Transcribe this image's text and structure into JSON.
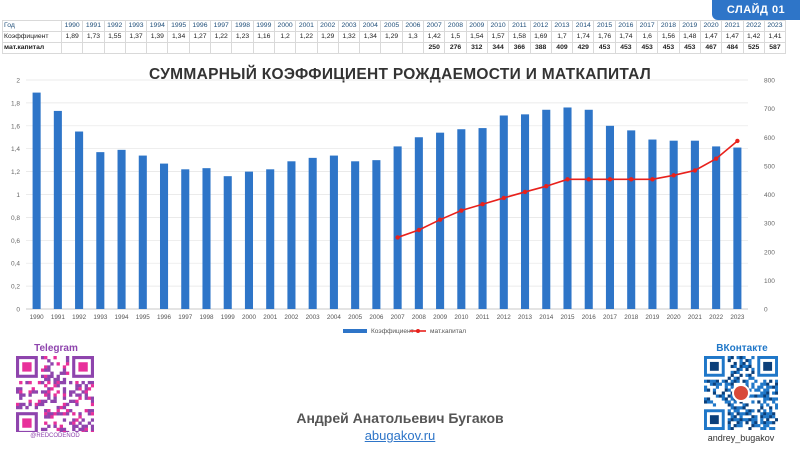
{
  "header": {
    "slide_label": "СЛАЙД 01"
  },
  "table": {
    "row_labels": {
      "year": "Год",
      "coefficient": "Коэффициент",
      "capital": "мат.капитал"
    },
    "years": [
      "1990",
      "1991",
      "1992",
      "1993",
      "1994",
      "1995",
      "1996",
      "1997",
      "1998",
      "1999",
      "2000",
      "2001",
      "2002",
      "2003",
      "2004",
      "2005",
      "2006",
      "2007",
      "2008",
      "2009",
      "2010",
      "2011",
      "2012",
      "2013",
      "2014",
      "2015",
      "2016",
      "2017",
      "2018",
      "2019",
      "2020",
      "2021",
      "2022",
      "2023"
    ],
    "coefficient": [
      "1,89",
      "1,73",
      "1,55",
      "1,37",
      "1,39",
      "1,34",
      "1,27",
      "1,22",
      "1,23",
      "1,16",
      "1,2",
      "1,22",
      "1,29",
      "1,32",
      "1,34",
      "1,29",
      "1,3",
      "1,42",
      "1,5",
      "1,54",
      "1,57",
      "1,58",
      "1,69",
      "1,7",
      "1,74",
      "1,76",
      "1,74",
      "1,6",
      "1,56",
      "1,48",
      "1,47",
      "1,47",
      "1,42",
      "1,41"
    ],
    "capital": [
      "",
      "",
      "",
      "",
      "",
      "",
      "",
      "",
      "",
      "",
      "",
      "",
      "",
      "",
      "",
      "",
      "",
      "250",
      "276",
      "312",
      "344",
      "366",
      "388",
      "409",
      "429",
      "453",
      "453",
      "453",
      "453",
      "453",
      "467",
      "484",
      "525",
      "587"
    ]
  },
  "chart_data": {
    "type": "bar+line",
    "title": "СУММАРНЫЙ КОЭФФИЦИЕНТ РОЖДАЕМОСТИ И МАТКАПИТАЛ",
    "categories": [
      "1990",
      "1991",
      "1992",
      "1993",
      "1994",
      "1995",
      "1996",
      "1997",
      "1998",
      "1999",
      "2000",
      "2001",
      "2002",
      "2003",
      "2004",
      "2005",
      "2006",
      "2007",
      "2008",
      "2009",
      "2010",
      "2011",
      "2012",
      "2013",
      "2014",
      "2015",
      "2016",
      "2017",
      "2018",
      "2019",
      "2020",
      "2021",
      "2022",
      "2023"
    ],
    "series": [
      {
        "name": "Коэффициент",
        "type": "bar",
        "axis": "left",
        "color": "#2e75c8",
        "values": [
          1.89,
          1.73,
          1.55,
          1.37,
          1.39,
          1.34,
          1.27,
          1.22,
          1.23,
          1.16,
          1.2,
          1.22,
          1.29,
          1.32,
          1.34,
          1.29,
          1.3,
          1.42,
          1.5,
          1.54,
          1.57,
          1.58,
          1.69,
          1.7,
          1.74,
          1.76,
          1.74,
          1.6,
          1.56,
          1.48,
          1.47,
          1.47,
          1.42,
          1.41
        ]
      },
      {
        "name": "мат.капитал",
        "type": "line",
        "axis": "right",
        "color": "#e8211c",
        "values": [
          null,
          null,
          null,
          null,
          null,
          null,
          null,
          null,
          null,
          null,
          null,
          null,
          null,
          null,
          null,
          null,
          null,
          250,
          276,
          312,
          344,
          366,
          388,
          409,
          429,
          453,
          453,
          453,
          453,
          453,
          467,
          484,
          525,
          587
        ]
      }
    ],
    "left_axis": {
      "ylim": [
        0,
        2
      ],
      "ticks": [
        "0",
        "0,2",
        "0,4",
        "0,6",
        "0,8",
        "1",
        "1,2",
        "1,4",
        "1,6",
        "1,8",
        "2"
      ]
    },
    "right_axis": {
      "ylim": [
        0,
        800
      ],
      "ticks": [
        "0",
        "100",
        "200",
        "300",
        "400",
        "500",
        "600",
        "700",
        "800"
      ]
    },
    "legend_position": "bottom",
    "grid": true
  },
  "footer": {
    "telegram_label": "Telegram",
    "telegram_handle": "@REDCODENOD",
    "vk_label": "ВКонтакте",
    "vk_handle": "andrey_bugakov",
    "author": "Андрей Анатольевич Бугаков",
    "site": "abugakov.ru"
  },
  "colors": {
    "accent": "#2e75c8",
    "line": "#e8211c",
    "telegram": "#8e44ad",
    "vk": "#1f77c8"
  }
}
